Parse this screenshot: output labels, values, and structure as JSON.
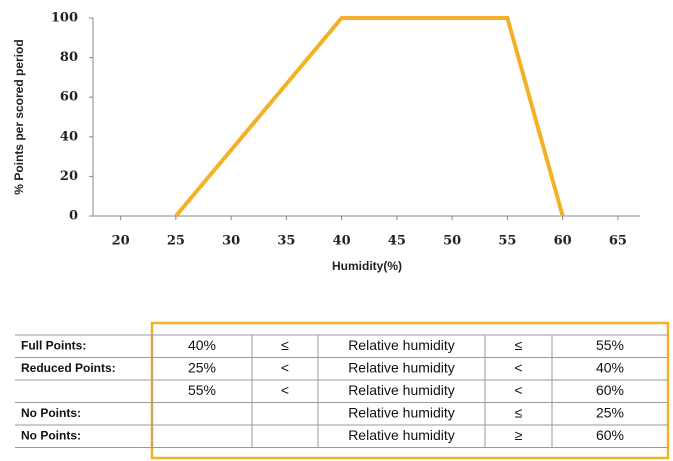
{
  "chart_data": {
    "type": "line",
    "ylabel": "% Points per scored period",
    "xlabel": "Humidity(%)",
    "x": [
      25,
      40,
      55,
      60
    ],
    "values": [
      0,
      100,
      100,
      0
    ],
    "color": "#f2b127",
    "xlim": [
      17.5,
      67
    ],
    "xticks": [
      20,
      25,
      30,
      35,
      40,
      45,
      50,
      55,
      60,
      65
    ],
    "ylim": [
      0,
      100
    ],
    "yticks": [
      0,
      20,
      40,
      60,
      80,
      100
    ],
    "grid": false
  },
  "table": {
    "rows": [
      [
        "Full Points:",
        "40%",
        "≤",
        "Relative humidity",
        "≤",
        "55%"
      ],
      [
        "Reduced Points:",
        "25%",
        "<",
        "Relative humidity",
        "<",
        "40%"
      ],
      [
        null,
        "55%",
        "<",
        "Relative humidity",
        "<",
        "60%"
      ],
      [
        "No Points:",
        null,
        null,
        "Relative humidity",
        "≤",
        "25%"
      ],
      [
        "No Points:",
        null,
        null,
        "Relative humidity",
        "≥",
        "60%"
      ]
    ]
  }
}
